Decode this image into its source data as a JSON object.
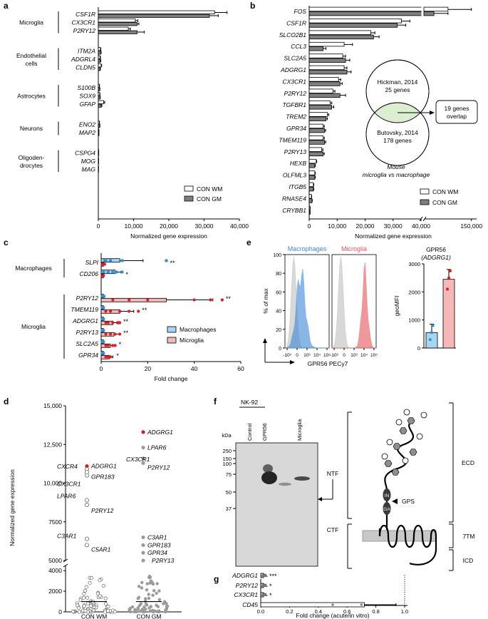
{
  "panels": {
    "a": {
      "label": "a",
      "chart_data": {
        "type": "bar",
        "orientation": "horizontal",
        "xlabel": "Normalized gene expression",
        "xlim": [
          0,
          40000
        ],
        "xticks": [
          "0",
          "10,000",
          "20,000",
          "30,000",
          "40,000"
        ],
        "series": [
          {
            "name": "CON WM",
            "color": "#ffffff"
          },
          {
            "name": "CON GM",
            "color": "#7f7f7f"
          }
        ],
        "groups": [
          {
            "label": "Microglia",
            "genes": [
              {
                "gene": "CSF1R",
                "wm": 33000,
                "gm": 31500,
                "wm_err": 3500,
                "gm_err": 2500
              },
              {
                "gene": "CX3CR1",
                "wm": 10500,
                "gm": 11000,
                "wm_err": 700,
                "gm_err": 500
              },
              {
                "gene": "P2RY12",
                "wm": 8500,
                "gm": 11000,
                "wm_err": 600,
                "gm_err": 2000
              }
            ]
          },
          {
            "label": "Endothelial cells",
            "genes": [
              {
                "gene": "ITM2A",
                "wm": 600,
                "gm": 700,
                "wm_err": 100,
                "gm_err": 100
              },
              {
                "gene": "ADGRL4",
                "wm": 500,
                "gm": 600,
                "wm_err": 100,
                "gm_err": 100
              },
              {
                "gene": "CLDN5",
                "wm": 800,
                "gm": 500,
                "wm_err": 150,
                "gm_err": 100
              }
            ]
          },
          {
            "label": "Astrocytes",
            "genes": [
              {
                "gene": "S100B",
                "wm": 300,
                "gm": 400,
                "wm_err": 50,
                "gm_err": 50
              },
              {
                "gene": "SOX9",
                "wm": 400,
                "gm": 500,
                "wm_err": 50,
                "gm_err": 50
              },
              {
                "gene": "GFAP",
                "wm": 1500,
                "gm": 800,
                "wm_err": 300,
                "gm_err": 200
              }
            ]
          },
          {
            "label": "Neurons",
            "genes": [
              {
                "gene": "ENO2",
                "wm": 300,
                "gm": 400,
                "wm_err": 50,
                "gm_err": 50
              },
              {
                "gene": "MAP2",
                "wm": 150,
                "gm": 150,
                "wm_err": 30,
                "gm_err": 30
              }
            ]
          },
          {
            "label": "Oligodendrocytes",
            "genes": [
              {
                "gene": "CSPG4",
                "wm": 100,
                "gm": 100,
                "wm_err": 20,
                "gm_err": 20
              },
              {
                "gene": "MOG",
                "wm": 80,
                "gm": 60,
                "wm_err": 20,
                "gm_err": 20
              },
              {
                "gene": "MAG",
                "wm": 60,
                "gm": 50,
                "wm_err": 10,
                "gm_err": 10
              }
            ]
          }
        ]
      }
    },
    "b": {
      "label": "b",
      "chart_data": {
        "type": "bar",
        "orientation": "horizontal",
        "xlabel": "Normalized gene expression",
        "axis_break": [
          40000,
          140000
        ],
        "xticks": [
          "0",
          "10,000",
          "20,000",
          "30,000",
          "40,000",
          "150,000"
        ],
        "series": [
          {
            "name": "CON WM",
            "color": "#ffffff"
          },
          {
            "name": "CON GM",
            "color": "#7f7f7f"
          }
        ],
        "genes": [
          {
            "gene": "FOS",
            "wm": 145000,
            "gm": 142000,
            "wm_err": 5000,
            "gm_err": 3000
          },
          {
            "gene": "CSF1R",
            "wm": 33000,
            "gm": 31500,
            "wm_err": 3000,
            "gm_err": 3000
          },
          {
            "gene": "SLCO2B1",
            "wm": 22000,
            "gm": 23000,
            "wm_err": 1500,
            "gm_err": 2000
          },
          {
            "gene": "CCL3",
            "wm": 12500,
            "gm": 5000,
            "wm_err": 3000,
            "gm_err": 1000
          },
          {
            "gene": "SLC2A5",
            "wm": 12000,
            "gm": 13000,
            "wm_err": 1000,
            "gm_err": 1500
          },
          {
            "gene": "ADGRG1",
            "wm": 12500,
            "gm": 13500,
            "wm_err": 1000,
            "gm_err": 1500
          },
          {
            "gene": "CX3CR1",
            "wm": 10500,
            "gm": 11000,
            "wm_err": 800,
            "gm_err": 800
          },
          {
            "gene": "P2RY12",
            "wm": 8500,
            "gm": 11000,
            "wm_err": 700,
            "gm_err": 2000
          },
          {
            "gene": "TGFBR1",
            "wm": 7500,
            "gm": 8000,
            "wm_err": 600,
            "gm_err": 800
          },
          {
            "gene": "TREM2",
            "wm": 6500,
            "gm": 6000,
            "wm_err": 500,
            "gm_err": 500
          },
          {
            "gene": "GPR34",
            "wm": 5000,
            "gm": 5500,
            "wm_err": 400,
            "gm_err": 400
          },
          {
            "gene": "TMEM119",
            "wm": 5000,
            "gm": 5500,
            "wm_err": 400,
            "gm_err": 400
          },
          {
            "gene": "P2RY13",
            "wm": 4500,
            "gm": 5000,
            "wm_err": 400,
            "gm_err": 400
          },
          {
            "gene": "HEXB",
            "wm": 2500,
            "gm": 2000,
            "wm_err": 200,
            "gm_err": 200
          },
          {
            "gene": "OLFML3",
            "wm": 2000,
            "gm": 2000,
            "wm_err": 200,
            "gm_err": 200
          },
          {
            "gene": "ITGB5",
            "wm": 1500,
            "gm": 1500,
            "wm_err": 150,
            "gm_err": 150
          },
          {
            "gene": "RNASE4",
            "wm": 800,
            "gm": 1000,
            "wm_err": 100,
            "gm_err": 100
          },
          {
            "gene": "CRYBB1",
            "wm": 300,
            "gm": 300,
            "wm_err": 50,
            "gm_err": 50
          }
        ],
        "venn": {
          "set1": "Hickman, 2014",
          "set1_n": "25 genes",
          "set2": "Butovsky, 2014",
          "set2_n": "178 genes",
          "overlap_box": "19 genes overlap",
          "caption": "Mouse microglia vs macrophage",
          "overlap_color": "#dbeed0"
        }
      }
    },
    "c": {
      "label": "c",
      "chart_data": {
        "type": "bar",
        "orientation": "horizontal",
        "xlabel": "Fold change",
        "xlim": [
          0,
          60
        ],
        "xticks": [
          "0",
          "20",
          "40",
          "60"
        ],
        "series": [
          {
            "name": "Macrophages",
            "color": "#a6d6f1",
            "dot_color": "#2f8fd8"
          },
          {
            "name": "Microglia",
            "color": "#f4b8b8",
            "dot_color": "#e01b1b"
          }
        ],
        "groups": [
          {
            "label": "Macrophages",
            "genes": [
              {
                "gene": "SLPI",
                "mac": 8,
                "mic": 1,
                "mac_err": 10,
                "mic_err": 0.5,
                "sig": "**",
                "mac_pts": [
                  1.5,
                  2,
                  4,
                  9,
                  28
                ],
                "mic_pts": [
                  0.5,
                  1,
                  1.5
                ]
              },
              {
                "gene": "CD206",
                "mac": 6,
                "mic": 1,
                "mac_err": 2.5,
                "mic_err": 0.3,
                "sig": "*",
                "mac_pts": [
                  1,
                  3,
                  5,
                  6.5,
                  9
                ],
                "mic_pts": [
                  0.5,
                  1
                ]
              }
            ]
          },
          {
            "label": "Microglia",
            "genes": [
              {
                "gene": "P2RY12",
                "mac": 1,
                "mic": 28,
                "mac_err": 0.3,
                "mic_err": 20,
                "sig": "**",
                "mac_pts": [
                  0.5,
                  1.2
                ],
                "mic_pts": [
                  5,
                  12,
                  20,
                  40,
                  47,
                  52
                ]
              },
              {
                "gene": "TMEM119",
                "mac": 1,
                "mic": 8,
                "mac_err": 0.3,
                "mic_err": 6,
                "sig": "**",
                "mac_pts": [
                  0.5,
                  1
                ],
                "mic_pts": [
                  2,
                  4,
                  8,
                  12,
                  16
                ]
              },
              {
                "gene": "ADGRG1",
                "mac": 1,
                "mic": 5,
                "mac_err": 0.3,
                "mic_err": 2.5,
                "sig": "**",
                "mac_pts": [
                  0.5,
                  1
                ],
                "mic_pts": [
                  2,
                  3,
                  5,
                  7,
                  8
                ]
              },
              {
                "gene": "P2RY13",
                "mac": 1,
                "mic": 5.5,
                "mac_err": 0.3,
                "mic_err": 2.5,
                "sig": "**",
                "mac_pts": [
                  0.5,
                  1
                ],
                "mic_pts": [
                  2,
                  4,
                  6,
                  8
                ]
              },
              {
                "gene": "SLC2A5",
                "mac": 1,
                "mic": 4,
                "mac_err": 0.3,
                "mic_err": 2,
                "sig": "*",
                "mac_pts": [
                  0.5,
                  1
                ],
                "mic_pts": [
                  2,
                  3,
                  5,
                  6
                ]
              },
              {
                "gene": "GPR34",
                "mac": 1,
                "mic": 3.5,
                "mac_err": 0.3,
                "mic_err": 1.5,
                "sig": "*",
                "mac_pts": [
                  0.5,
                  1
                ],
                "mic_pts": [
                  2,
                  3,
                  4
                ]
              }
            ]
          }
        ]
      }
    },
    "d": {
      "label": "d",
      "chart_data": {
        "type": "scatter",
        "ylabel": "Normalized gene expression",
        "categories": [
          "CON WM",
          "CON GM"
        ],
        "yticks_upper": [
          "5000",
          "7500",
          "10,000",
          "12,500",
          "15,000"
        ],
        "yticks_lower": [
          "0",
          "2000",
          "4000"
        ],
        "ylim_upper": [
          5000,
          15000
        ],
        "ylim_lower": [
          0,
          4500
        ],
        "medians": [
          1000,
          1000
        ],
        "highlight_color": "#e01b1b",
        "wm_color": "#ffffff",
        "gm_color": "#9a9a9a",
        "labeled_points": [
          {
            "group": "CON WM",
            "gene": "ADGRG1",
            "y": 11100,
            "highlight": true
          },
          {
            "group": "CON WM",
            "gene": "CXCR4",
            "y": 10900,
            "highlight": false
          },
          {
            "group": "CON WM",
            "gene": "GPR183",
            "y": 10700,
            "highlight": false
          },
          {
            "group": "CON WM",
            "gene": "CX3CR1",
            "y": 10500,
            "highlight": false
          },
          {
            "group": "CON WM",
            "gene": "LPAR6",
            "y": 8900,
            "highlight": false
          },
          {
            "group": "CON WM",
            "gene": "P2RY12",
            "y": 8600,
            "highlight": false
          },
          {
            "group": "CON WM",
            "gene": "C3AR1",
            "y": 6400,
            "highlight": false
          },
          {
            "group": "CON WM",
            "gene": "C5AR1",
            "y": 6000,
            "highlight": false
          },
          {
            "group": "CON GM",
            "gene": "ADGRG1",
            "y": 13300,
            "highlight": true
          },
          {
            "group": "CON GM",
            "gene": "LPAR6",
            "y": 12300,
            "highlight": false
          },
          {
            "group": "CON GM",
            "gene": "CX3CR1",
            "y": 11600,
            "highlight": false
          },
          {
            "group": "CON GM",
            "gene": "P2RY12",
            "y": 11300,
            "highlight": false
          },
          {
            "group": "CON GM",
            "gene": "C3AR1",
            "y": 6500,
            "highlight": false
          },
          {
            "group": "CON GM",
            "gene": "GPR183",
            "y": 6000,
            "highlight": false
          },
          {
            "group": "CON GM",
            "gene": "GPR34",
            "y": 5500,
            "highlight": false
          },
          {
            "group": "CON GM",
            "gene": "P2RY13",
            "y": 5000,
            "highlight": false
          }
        ]
      }
    },
    "e": {
      "label": "e",
      "flow_ylabel": "% of max",
      "flow_xlabel": "GPR56 PECy7",
      "flow_yticks": [
        "0",
        "20",
        "40",
        "60",
        "80",
        "100"
      ],
      "flow_xticks": [
        "-10³",
        "0",
        "10³",
        "10⁴",
        "10⁵"
      ],
      "macrophages_title": "Macrophages",
      "microglia_title": "Microglia",
      "macrophage_color": "#3a86d6",
      "microglia_color": "#e6535a",
      "control_color": "#cfcfcf",
      "bar_title": "GPR56",
      "bar_subtitle": "(ADGRG1)",
      "chart_data": {
        "type": "bar",
        "ylabel": "geoMFI",
        "ylim": [
          0,
          3000
        ],
        "yticks": [
          "0",
          "1000",
          "2000",
          "3000"
        ],
        "categories": [
          "Macrophages",
          "Microglia"
        ],
        "values": [
          550,
          2450
        ],
        "errors": [
          300,
          350
        ],
        "points": [
          [
            300,
            550,
            800
          ],
          [
            2100,
            2500,
            2750
          ]
        ],
        "colors": [
          "#a6d6f1",
          "#f4b8b8"
        ],
        "dot_colors": [
          "#2f8fd8",
          "#e01b1b"
        ]
      }
    },
    "f": {
      "label": "f",
      "cell_line": "NK-92",
      "lanes": [
        "Control",
        "GPR56",
        "Microglia"
      ],
      "kda_label": "kDa",
      "markers": [
        "250",
        "150",
        "100",
        "75",
        "50",
        "37"
      ],
      "ntf": "NTF",
      "ctf": "CTF",
      "ecd": "ECD",
      "seven_tm": "7TM",
      "icd": "ICD",
      "gps": "GPS",
      "in_label": "IN",
      "ga_label": "GA"
    },
    "g": {
      "label": "g",
      "chart_data": {
        "type": "bar",
        "orientation": "horizontal",
        "xlabel": "Fold change (acute/in vitro)",
        "xlim": [
          0,
          1.0
        ],
        "xticks": [
          "0.0",
          "0.2",
          "0.4",
          "0.6",
          "0.8",
          "1.0"
        ],
        "reference_line": 1.0,
        "genes": [
          {
            "gene": "ADGRG1",
            "value": 0.02,
            "err": 0.01,
            "sig": "***",
            "points": [
              0.01,
              0.02,
              0.03
            ]
          },
          {
            "gene": "P2RY12",
            "value": 0.02,
            "err": 0.01,
            "sig": "*",
            "points": [
              0.01,
              0.02,
              0.03
            ]
          },
          {
            "gene": "CX3CR1",
            "value": 0.02,
            "err": 0.01,
            "sig": "*",
            "points": [
              0.01,
              0.02,
              0.03
            ]
          },
          {
            "gene": "CD45",
            "value": 0.72,
            "err": 0.22,
            "sig": "",
            "points": [
              0.5,
              0.7
            ]
          }
        ]
      }
    }
  }
}
